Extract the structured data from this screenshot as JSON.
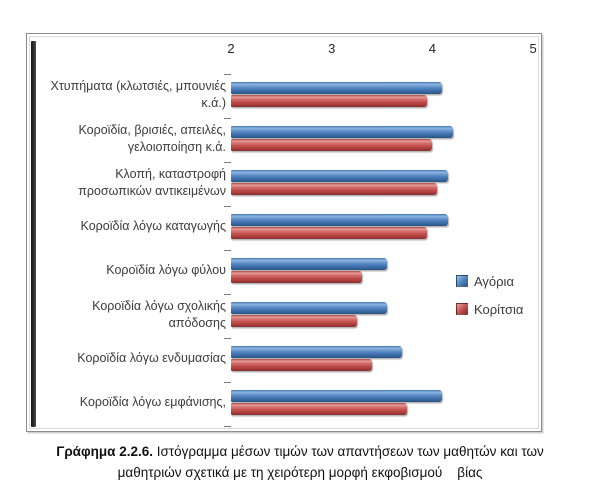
{
  "chart_data": {
    "type": "bar",
    "orientation": "horizontal",
    "title": "",
    "x_axis": {
      "position": "top",
      "min": 2,
      "max": 5,
      "ticks": [
        2,
        3,
        4,
        5
      ]
    },
    "grid": false,
    "legend_position": "right",
    "categories": [
      "Χτυπήματα (κλωτσιές, μπουνιές κ.ά.)",
      "Κοροϊδία, βρισιές, απειλές, γελοιοποίηση κ.ά.",
      "Κλοπή, καταστροφή προσωπικών αντικειμένων",
      "Κοροϊδία λόγω καταγωγής",
      "Κοροϊδία λόγω φύλου",
      "Κοροϊδία λόγω σχολικής απόδοσης",
      "Κοροϊδία λόγω ενδυμασίας",
      "Κοροϊδία λόγω εμφάνισης,"
    ],
    "series": [
      {
        "name": "Αγόρια",
        "color": "#4f81bd",
        "values": [
          4.1,
          4.2,
          4.15,
          4.15,
          3.55,
          3.55,
          3.7,
          4.1
        ]
      },
      {
        "name": "Κορίτσια",
        "color": "#c0504d",
        "values": [
          3.95,
          4.0,
          4.05,
          3.95,
          3.3,
          3.25,
          3.4,
          3.75
        ]
      }
    ]
  },
  "caption": {
    "bold": "Γράφημα 2.2.6.",
    "text": " Ιστόγραμμα μέσων τιμών των απαντήσεων των μαθητών και των μαθητριών σχετικά με τη χειρότερη μορφή εκφοβισμού    βίας"
  }
}
